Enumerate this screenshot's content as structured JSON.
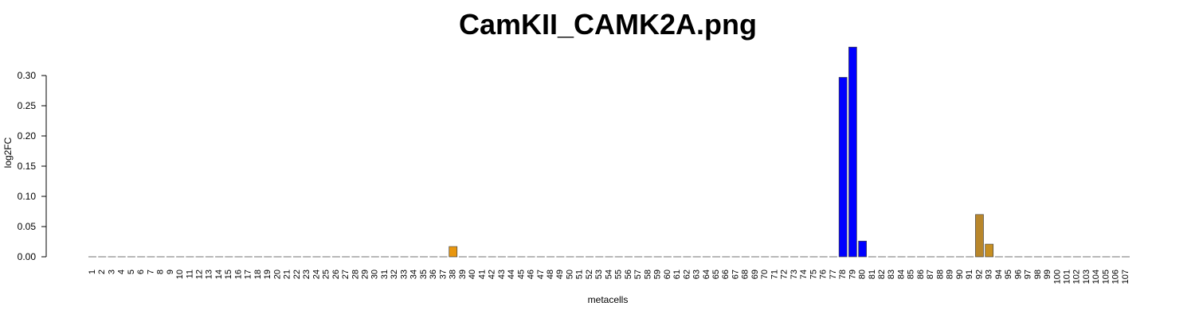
{
  "chart_data": {
    "type": "bar",
    "title": "CamKII_CAMK2A.png",
    "x_label": "metacells",
    "y_label": "log2FC",
    "categories": [
      "1",
      "2",
      "3",
      "4",
      "5",
      "6",
      "7",
      "8",
      "9",
      "10",
      "11",
      "12",
      "13",
      "14",
      "15",
      "16",
      "17",
      "18",
      "19",
      "20",
      "21",
      "22",
      "23",
      "24",
      "25",
      "26",
      "27",
      "28",
      "29",
      "30",
      "31",
      "32",
      "33",
      "34",
      "35",
      "36",
      "37",
      "38",
      "39",
      "40",
      "41",
      "42",
      "43",
      "44",
      "45",
      "46",
      "47",
      "48",
      "49",
      "50",
      "51",
      "52",
      "53",
      "54",
      "55",
      "56",
      "57",
      "58",
      "59",
      "60",
      "61",
      "62",
      "63",
      "64",
      "65",
      "66",
      "67",
      "68",
      "69",
      "70",
      "71",
      "72",
      "73",
      "74",
      "75",
      "76",
      "77",
      "78",
      "79",
      "80",
      "81",
      "82",
      "83",
      "84",
      "85",
      "86",
      "87",
      "88",
      "89",
      "90",
      "91",
      "92",
      "93",
      "94",
      "95",
      "96",
      "97",
      "98",
      "99",
      "100",
      "101",
      "102",
      "103",
      "104",
      "105",
      "106",
      "107"
    ],
    "values": [
      0,
      0,
      0,
      0,
      0,
      0,
      0,
      0,
      0,
      0,
      0,
      0,
      0,
      0,
      0,
      0,
      0,
      0,
      0,
      0,
      0,
      0,
      0,
      0,
      0,
      0,
      0,
      0,
      0,
      0,
      0,
      0,
      0,
      0,
      0,
      0,
      0,
      0.017,
      0,
      0,
      0,
      0,
      0,
      0,
      0,
      0,
      0,
      0,
      0,
      0,
      0,
      0,
      0,
      0,
      0,
      0,
      0,
      0,
      0,
      0,
      0,
      0,
      0,
      0,
      0,
      0,
      0,
      0,
      0,
      0,
      0,
      0,
      0,
      0,
      0,
      0,
      0,
      0.297,
      0.347,
      0.026,
      0,
      0,
      0,
      0,
      0,
      0,
      0,
      0,
      0,
      0,
      0,
      0.07,
      0.021,
      0,
      0,
      0,
      0,
      0,
      0,
      0,
      0,
      0,
      0,
      0,
      0,
      0,
      0
    ],
    "colors": [
      "#808080",
      "#808080",
      "#808080",
      "#808080",
      "#808080",
      "#808080",
      "#808080",
      "#808080",
      "#808080",
      "#808080",
      "#808080",
      "#808080",
      "#808080",
      "#808080",
      "#808080",
      "#808080",
      "#808080",
      "#808080",
      "#808080",
      "#808080",
      "#808080",
      "#808080",
      "#808080",
      "#808080",
      "#808080",
      "#808080",
      "#808080",
      "#808080",
      "#808080",
      "#808080",
      "#808080",
      "#808080",
      "#808080",
      "#808080",
      "#808080",
      "#808080",
      "#808080",
      "#e8960e",
      "#808080",
      "#808080",
      "#808080",
      "#808080",
      "#808080",
      "#808080",
      "#808080",
      "#808080",
      "#808080",
      "#808080",
      "#808080",
      "#808080",
      "#808080",
      "#808080",
      "#808080",
      "#808080",
      "#808080",
      "#808080",
      "#808080",
      "#808080",
      "#808080",
      "#808080",
      "#808080",
      "#808080",
      "#808080",
      "#808080",
      "#808080",
      "#808080",
      "#808080",
      "#808080",
      "#808080",
      "#808080",
      "#808080",
      "#808080",
      "#808080",
      "#808080",
      "#808080",
      "#808080",
      "#808080",
      "#0000ff",
      "#0000ff",
      "#0000ff",
      "#808080",
      "#808080",
      "#808080",
      "#808080",
      "#808080",
      "#808080",
      "#808080",
      "#808080",
      "#808080",
      "#808080",
      "#808080",
      "#b8862b",
      "#c78f22",
      "#808080",
      "#808080",
      "#808080",
      "#808080",
      "#808080",
      "#808080",
      "#808080",
      "#808080",
      "#808080",
      "#808080",
      "#808080",
      "#808080",
      "#808080",
      "#808080"
    ],
    "ylim": [
      0,
      0.35
    ],
    "yticks": [
      {
        "value": 0,
        "label": "0.00"
      },
      {
        "value": 0.05,
        "label": "0.05"
      },
      {
        "value": 0.1,
        "label": "0.10"
      },
      {
        "value": 0.15,
        "label": "0.15"
      },
      {
        "value": 0.2,
        "label": "0.20"
      },
      {
        "value": 0.25,
        "label": "0.25"
      },
      {
        "value": 0.3,
        "label": "0.30"
      }
    ]
  }
}
